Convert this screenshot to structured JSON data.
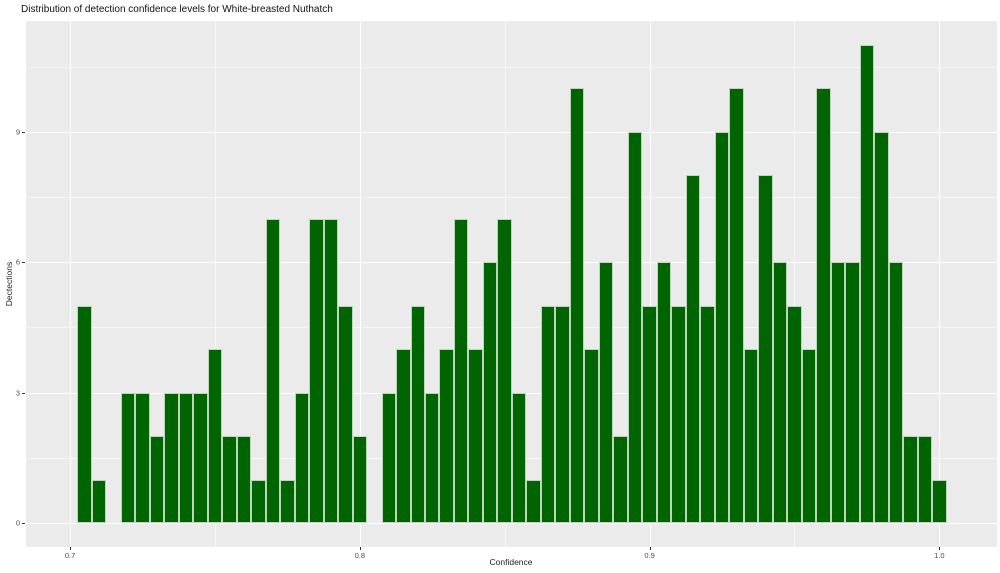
{
  "chart_data": {
    "type": "bar",
    "subtype": "histogram",
    "title": "Distribution of detection confidence levels for White-breasted Nuthatch",
    "xlabel": "Confidence",
    "ylabel": "Dectections",
    "bin_width": 0.005,
    "x": [
      0.705,
      0.71,
      0.715,
      0.72,
      0.725,
      0.73,
      0.735,
      0.74,
      0.745,
      0.75,
      0.755,
      0.76,
      0.765,
      0.77,
      0.775,
      0.78,
      0.785,
      0.79,
      0.795,
      0.8,
      0.805,
      0.81,
      0.815,
      0.82,
      0.825,
      0.83,
      0.835,
      0.84,
      0.845,
      0.85,
      0.855,
      0.86,
      0.865,
      0.87,
      0.875,
      0.88,
      0.885,
      0.89,
      0.895,
      0.9,
      0.905,
      0.91,
      0.915,
      0.92,
      0.925,
      0.93,
      0.935,
      0.94,
      0.945,
      0.95,
      0.955,
      0.96,
      0.965,
      0.97,
      0.975,
      0.98,
      0.985,
      0.99,
      0.995,
      1.0
    ],
    "counts": [
      5,
      1,
      0,
      3,
      3,
      2,
      3,
      3,
      3,
      4,
      2,
      2,
      1,
      7,
      1,
      3,
      7,
      7,
      5,
      2,
      0,
      3,
      4,
      5,
      3,
      4,
      7,
      4,
      6,
      7,
      3,
      1,
      5,
      5,
      10,
      4,
      6,
      2,
      9,
      5,
      6,
      5,
      8,
      5,
      9,
      10,
      4,
      8,
      6,
      5,
      4,
      10,
      6,
      6,
      11,
      9,
      6,
      2,
      2,
      1
    ],
    "x_ticks": [
      0.7,
      0.8,
      0.9,
      1.0
    ],
    "x_tick_labels": [
      "0.7",
      "0.8",
      "0.9",
      "1.0"
    ],
    "x_minor_ticks": [
      0.75,
      0.85,
      0.95
    ],
    "y_ticks": [
      0,
      3,
      6,
      9
    ],
    "y_tick_labels": [
      "0",
      "3",
      "6",
      "9"
    ],
    "y_minor_ticks": [
      1.5,
      4.5,
      7.5,
      10.5
    ],
    "xlim": [
      0.6848,
      1.0199
    ],
    "ylim": [
      -0.55,
      11.55
    ],
    "grid": true,
    "legend": false,
    "colors": {
      "bar_fill": "#006400",
      "bar_border": "#bcd6bc",
      "panel_background": "#EBEBEB",
      "grid_major": "#ffffff",
      "tick_text": "#4D4D4D",
      "title_text": "#111111"
    }
  }
}
